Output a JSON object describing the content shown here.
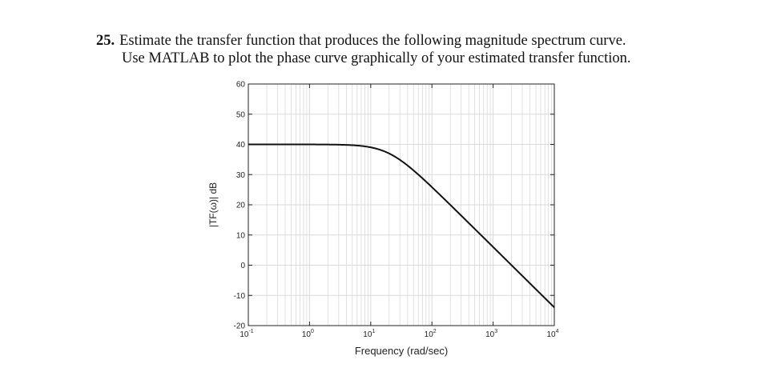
{
  "problem": {
    "number": "25.",
    "line1": "Estimate the transfer function that produces the following magnitude spectrum curve.",
    "line2": "Use MATLAB to plot the phase curve graphically of your estimated transfer function."
  },
  "chart_data": {
    "type": "line",
    "xlabel": "Frequency (rad/sec)",
    "ylabel": "|TF(ω)| dB",
    "xscale": "log",
    "xlim": [
      0.1,
      10000
    ],
    "ylim": [
      -20,
      60
    ],
    "grid": true,
    "x_ticks": [
      {
        "base": "10",
        "exp": "-1",
        "value": 0.1
      },
      {
        "base": "10",
        "exp": "0",
        "value": 1
      },
      {
        "base": "10",
        "exp": "1",
        "value": 10
      },
      {
        "base": "10",
        "exp": "2",
        "value": 100
      },
      {
        "base": "10",
        "exp": "3",
        "value": 1000
      },
      {
        "base": "10",
        "exp": "4",
        "value": 10000
      }
    ],
    "y_ticks": [
      "60",
      "50",
      "40",
      "30",
      "20",
      "10",
      "0",
      "-10",
      "-20"
    ],
    "series": [
      {
        "dc_gain_db": 40,
        "corner_rad_s": 20,
        "slope_db_per_decade": -20,
        "x": [
          0.1,
          1,
          5,
          10,
          20,
          50,
          100,
          1000,
          10000
        ],
        "y": [
          40,
          40,
          39.7,
          39,
          37,
          31.4,
          26,
          6,
          -14
        ]
      }
    ],
    "line_color": "#111111",
    "grid_color": "#d9d9d9"
  }
}
